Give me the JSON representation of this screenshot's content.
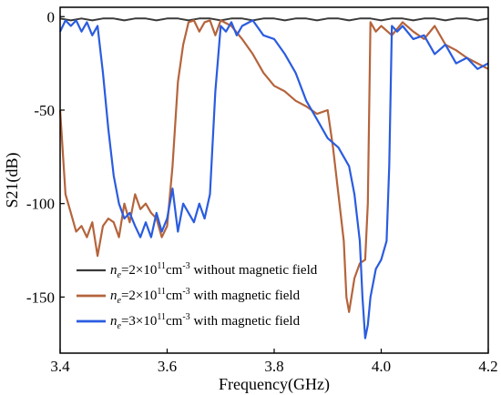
{
  "chart_data": {
    "type": "line",
    "title": "",
    "xlabel": "Frequency(GHz)",
    "ylabel": "S21(dB)",
    "xlim": [
      3.4,
      4.2
    ],
    "ylim": [
      -180,
      5
    ],
    "xticks": [
      "3.4",
      "3.6",
      "3.8",
      "4.0",
      "4.2"
    ],
    "xtick_values": [
      3.4,
      3.6,
      3.8,
      4.0,
      4.2
    ],
    "yticks": [
      "0",
      "-50",
      "-100",
      "-150"
    ],
    "ytick_values": [
      0,
      -50,
      -100,
      -150
    ],
    "grid": false,
    "legend_position": "bottom-left",
    "series": [
      {
        "name": "n_e=2×10^11cm^-3 without magnetic field",
        "legend": {
          "base": "n",
          "sub": "e",
          "pre": "=2×10",
          "exp": "11",
          "unit": "cm",
          "unit_exp": "-3",
          "suffix": " without magnetic field"
        },
        "color": "#3a3a3a",
        "x": [
          3.4,
          3.42,
          3.44,
          3.46,
          3.48,
          3.5,
          3.52,
          3.54,
          3.56,
          3.58,
          3.6,
          3.62,
          3.64,
          3.66,
          3.68,
          3.7,
          3.72,
          3.74,
          3.76,
          3.78,
          3.8,
          3.82,
          3.84,
          3.86,
          3.88,
          3.9,
          3.92,
          3.94,
          3.96,
          3.98,
          4.0,
          4.02,
          4.04,
          4.06,
          4.08,
          4.1,
          4.12,
          4.14,
          4.16,
          4.18,
          4.2
        ],
        "y": [
          -1,
          -2,
          -1,
          -2,
          -1,
          -1,
          -2,
          -1,
          -1,
          -2,
          -1,
          -1,
          -2,
          -1,
          -1,
          -2,
          -1,
          -1,
          -2,
          -1,
          -1,
          -2,
          -1,
          -1,
          -2,
          -1,
          -1,
          -2,
          -1,
          -1,
          -2,
          -1,
          -1,
          -2,
          -1,
          -1,
          -2,
          -1,
          -1,
          -2,
          -1
        ]
      },
      {
        "name": "n_e=2×10^11cm^-3 with magnetic field",
        "legend": {
          "base": "n",
          "sub": "e",
          "pre": "=2×10",
          "exp": "11",
          "unit": "cm",
          "unit_exp": "-3",
          "suffix": " with magnetic field"
        },
        "color": "#b5643c",
        "x": [
          3.4,
          3.41,
          3.42,
          3.43,
          3.44,
          3.45,
          3.46,
          3.47,
          3.48,
          3.49,
          3.5,
          3.51,
          3.52,
          3.53,
          3.54,
          3.55,
          3.56,
          3.57,
          3.58,
          3.59,
          3.6,
          3.61,
          3.62,
          3.63,
          3.64,
          3.65,
          3.66,
          3.67,
          3.68,
          3.69,
          3.7,
          3.72,
          3.74,
          3.76,
          3.78,
          3.8,
          3.82,
          3.84,
          3.86,
          3.88,
          3.9,
          3.91,
          3.92,
          3.93,
          3.935,
          3.94,
          3.95,
          3.96,
          3.97,
          3.975,
          3.98,
          3.99,
          4.0,
          4.02,
          4.04,
          4.06,
          4.08,
          4.1,
          4.12,
          4.14,
          4.16,
          4.18,
          4.2
        ],
        "y": [
          -50,
          -95,
          -105,
          -115,
          -112,
          -118,
          -110,
          -128,
          -112,
          -108,
          -110,
          -118,
          -100,
          -110,
          -95,
          -103,
          -100,
          -105,
          -108,
          -118,
          -112,
          -80,
          -35,
          -15,
          -3,
          -2,
          -8,
          -3,
          -2,
          -10,
          -2,
          -5,
          -12,
          -20,
          -30,
          -37,
          -40,
          -45,
          -48,
          -52,
          -50,
          -70,
          -95,
          -120,
          -150,
          -158,
          -140,
          -132,
          -130,
          -100,
          -3,
          -8,
          -5,
          -10,
          -3,
          -8,
          -12,
          -5,
          -15,
          -18,
          -22,
          -25,
          -28
        ]
      },
      {
        "name": "n_e=3×10^11cm^-3 with magnetic field",
        "legend": {
          "base": "n",
          "sub": "e",
          "pre": "=3×10",
          "exp": "11",
          "unit": "cm",
          "unit_exp": "-3",
          "suffix": " with magnetic field"
        },
        "color": "#2a5ce0",
        "x": [
          3.4,
          3.41,
          3.42,
          3.43,
          3.44,
          3.45,
          3.46,
          3.47,
          3.48,
          3.49,
          3.5,
          3.51,
          3.52,
          3.53,
          3.54,
          3.55,
          3.56,
          3.57,
          3.58,
          3.59,
          3.6,
          3.61,
          3.62,
          3.63,
          3.64,
          3.65,
          3.66,
          3.67,
          3.68,
          3.69,
          3.7,
          3.71,
          3.72,
          3.73,
          3.74,
          3.76,
          3.78,
          3.8,
          3.82,
          3.84,
          3.86,
          3.88,
          3.9,
          3.92,
          3.94,
          3.95,
          3.96,
          3.965,
          3.97,
          3.975,
          3.98,
          3.99,
          4.0,
          4.01,
          4.015,
          4.02,
          4.03,
          4.04,
          4.06,
          4.08,
          4.1,
          4.12,
          4.14,
          4.16,
          4.18,
          4.2
        ],
        "y": [
          -8,
          -2,
          -5,
          -2,
          -8,
          -3,
          -10,
          -5,
          -30,
          -60,
          -85,
          -100,
          -108,
          -105,
          -112,
          -118,
          -110,
          -118,
          -105,
          -115,
          -108,
          -92,
          -115,
          -100,
          -105,
          -110,
          -100,
          -108,
          -95,
          -40,
          -5,
          -8,
          -3,
          -10,
          -5,
          -2,
          -10,
          -12,
          -20,
          -30,
          -45,
          -55,
          -65,
          -70,
          -80,
          -95,
          -120,
          -150,
          -172,
          -165,
          -150,
          -135,
          -130,
          -120,
          -80,
          -5,
          -8,
          -5,
          -12,
          -10,
          -20,
          -15,
          -25,
          -22,
          -28,
          -25
        ]
      }
    ]
  }
}
